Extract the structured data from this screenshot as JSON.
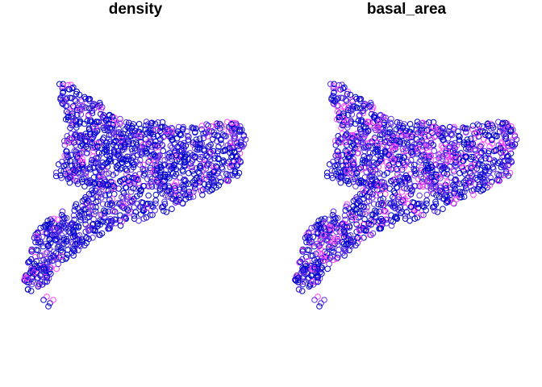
{
  "panels": [
    {
      "title": "density",
      "variable": "density"
    },
    {
      "title": "basal_area",
      "variable": "basal_area"
    }
  ],
  "colors": {
    "low": "#0000CD",
    "mid": "#5A2BE8",
    "high": "#FF40FF",
    "background": "#FFFFFF"
  },
  "marker": "open-circle",
  "point_count_hint": "dense point cloud (thousands of plots)"
}
